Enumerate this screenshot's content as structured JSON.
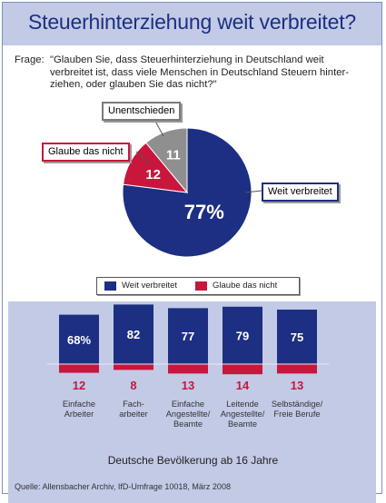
{
  "title": "Steuerhinterziehung weit verbreitet?",
  "question_label": "Frage:",
  "question_text": "\"Glauben Sie, dass Steuerhinterziehung in Deutschland weit verbreitet ist, dass viele Menschen in Deutschland Steuern hinter-ziehen, oder glauben Sie das nicht?\"",
  "colors": {
    "blue": "#1c2f82",
    "red": "#c8163d",
    "gray": "#8f8f8f",
    "panel": "#c2cae6"
  },
  "chart_data": [
    {
      "type": "pie",
      "slices": [
        {
          "label": "Weit verbreitet",
          "value": 77,
          "display": "77%"
        },
        {
          "label": "Glaube das nicht",
          "value": 12,
          "display": "12"
        },
        {
          "label": "Unentschieden",
          "value": 11,
          "display": "11"
        }
      ]
    },
    {
      "type": "bar",
      "legend": [
        "Weit verbreitet",
        "Glaube das nicht"
      ],
      "categories": [
        "Einfache Arbeiter",
        "Fach-arbeiter",
        "Einfache Angestellte/ Beamte",
        "Leitende Angestellte/ Beamte",
        "Selbständige/ Freie Berufe"
      ],
      "category_lines": [
        [
          "Einfache",
          "Arbeiter"
        ],
        [
          "Fach-",
          "arbeiter"
        ],
        [
          "Einfache",
          "Angestellte/",
          "Beamte"
        ],
        [
          "Leitende",
          "Angestellte/",
          "Beamte"
        ],
        [
          "Selbständige/",
          "Freie Berufe"
        ]
      ],
      "series": [
        {
          "name": "Weit verbreitet",
          "values": [
            68,
            82,
            77,
            79,
            75
          ],
          "labels": [
            "68%",
            "82",
            "77",
            "79",
            "75"
          ]
        },
        {
          "name": "Glaube das nicht",
          "values": [
            12,
            8,
            13,
            14,
            13
          ],
          "labels": [
            "12",
            "8",
            "13",
            "14",
            "13"
          ]
        }
      ]
    }
  ],
  "subtitle": "Deutsche Bevölkerung ab 16 Jahre",
  "source": "Quelle: Allensbacher Archiv, IfD-Umfrage 10018, März 2008"
}
